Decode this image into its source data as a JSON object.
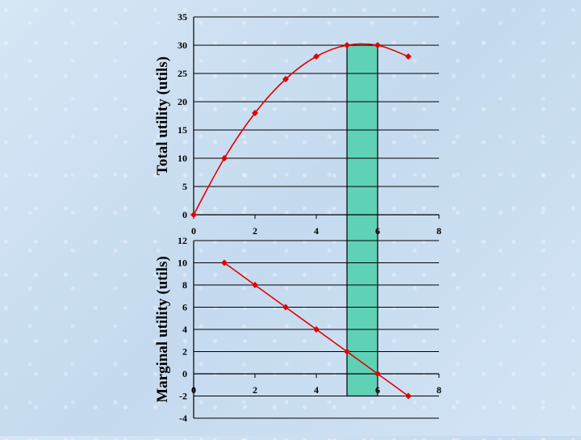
{
  "colors": {
    "line": "#e00000",
    "grid": "#000000",
    "highlight_fill": "#5fd1b5",
    "highlight_stroke": "#000000"
  },
  "chart_data": [
    {
      "id": "total",
      "type": "line",
      "ylabel": "Total utility (utils)",
      "xlabel": "",
      "x": [
        0,
        1,
        2,
        3,
        4,
        5,
        6,
        7
      ],
      "y": [
        0,
        10,
        18,
        24,
        28,
        30,
        30,
        28
      ],
      "xlim": [
        0,
        8
      ],
      "ylim": [
        0,
        35
      ],
      "xticks": [
        0,
        2,
        4,
        6,
        8
      ],
      "xtick_labels": [
        "0",
        "2",
        "4",
        "6",
        "8"
      ],
      "yticks": [
        0,
        5,
        10,
        15,
        20,
        25,
        30,
        35
      ],
      "ytick_labels": [
        "0",
        "5",
        "10",
        "15",
        "20",
        "25",
        "30",
        "35"
      ],
      "smooth": true,
      "highlight_x": [
        5,
        6
      ]
    },
    {
      "id": "marginal",
      "type": "line",
      "ylabel": "Marginal utility (utils)",
      "xlabel": "",
      "x": [
        1,
        2,
        3,
        4,
        5,
        6,
        7
      ],
      "y": [
        10,
        8,
        6,
        4,
        2,
        0,
        -2
      ],
      "xlim": [
        0,
        8
      ],
      "ylim": [
        -4,
        12
      ],
      "xticks": [
        0,
        2,
        4,
        6,
        8
      ],
      "xtick_labels": [
        "0",
        "2",
        "4",
        "6",
        "8"
      ],
      "yticks": [
        -4,
        -2,
        0,
        2,
        4,
        6,
        8,
        10,
        12
      ],
      "ytick_labels": [
        "-4",
        "-2",
        "0",
        "2",
        "4",
        "6",
        "8",
        "10",
        "12"
      ],
      "smooth": false,
      "highlight_x": [
        5,
        6
      ],
      "highlight_y": [
        -2,
        12
      ]
    }
  ]
}
